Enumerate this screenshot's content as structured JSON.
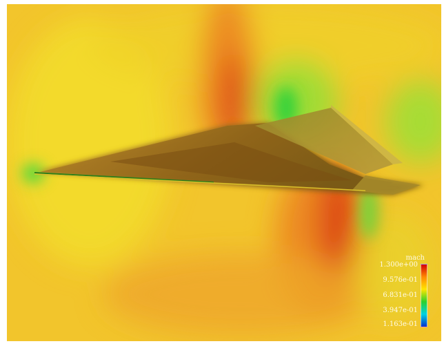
{
  "legend": {
    "title": "mach",
    "labels": [
      "1.300e+00",
      "9.576e-01",
      "6.831e-01",
      "3.947e-01",
      "1.163e-01"
    ],
    "colors": [
      "#d40000",
      "#ff8a00",
      "#ffe600",
      "#2bd12b",
      "#00d2e0",
      "#0033cc"
    ]
  },
  "field_colors": {
    "background": "#f4c62a",
    "yellow": "#f3e12a",
    "orange": "#ef8f22",
    "red": "#dd4418",
    "green": "#3fd23a",
    "wing_top": "#a8741e",
    "wing_dark": "#7c5a14"
  }
}
